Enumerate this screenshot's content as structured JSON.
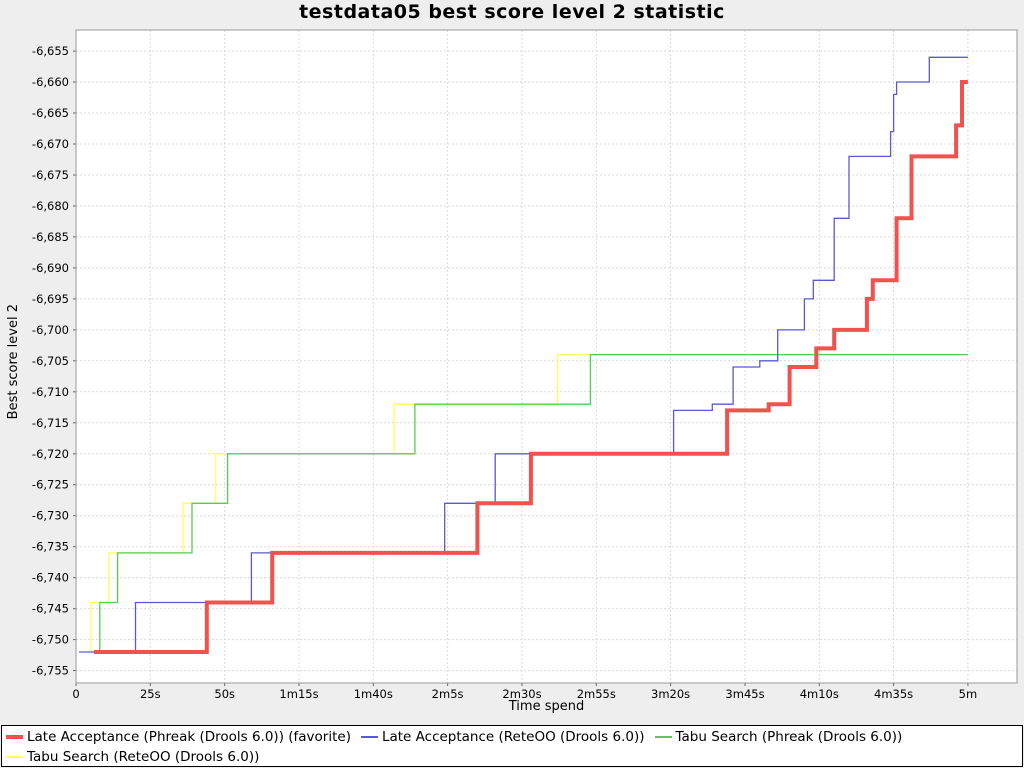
{
  "title": "testdata05 best score level 2 statistic",
  "x_axis": {
    "label": "Time spend",
    "ticks": [
      {
        "t": 0,
        "label": "0"
      },
      {
        "t": 25,
        "label": "25s"
      },
      {
        "t": 50,
        "label": "50s"
      },
      {
        "t": 75,
        "label": "1m15s"
      },
      {
        "t": 100,
        "label": "1m40s"
      },
      {
        "t": 125,
        "label": "2m5s"
      },
      {
        "t": 150,
        "label": "2m30s"
      },
      {
        "t": 175,
        "label": "2m55s"
      },
      {
        "t": 200,
        "label": "3m20s"
      },
      {
        "t": 225,
        "label": "3m45s"
      },
      {
        "t": 250,
        "label": "4m10s"
      },
      {
        "t": 275,
        "label": "4m35s"
      },
      {
        "t": 300,
        "label": "5m"
      }
    ]
  },
  "y_axis": {
    "label": "Best score level 2",
    "ticks": [
      {
        "v": -6655,
        "label": "-6,655"
      },
      {
        "v": -6660,
        "label": "-6,660"
      },
      {
        "v": -6665,
        "label": "-6,665"
      },
      {
        "v": -6670,
        "label": "-6,670"
      },
      {
        "v": -6675,
        "label": "-6,675"
      },
      {
        "v": -6680,
        "label": "-6,680"
      },
      {
        "v": -6685,
        "label": "-6,685"
      },
      {
        "v": -6690,
        "label": "-6,690"
      },
      {
        "v": -6695,
        "label": "-6,695"
      },
      {
        "v": -6700,
        "label": "-6,700"
      },
      {
        "v": -6705,
        "label": "-6,705"
      },
      {
        "v": -6710,
        "label": "-6,710"
      },
      {
        "v": -6715,
        "label": "-6,715"
      },
      {
        "v": -6720,
        "label": "-6,720"
      },
      {
        "v": -6725,
        "label": "-6,725"
      },
      {
        "v": -6730,
        "label": "-6,730"
      },
      {
        "v": -6735,
        "label": "-6,735"
      },
      {
        "v": -6740,
        "label": "-6,740"
      },
      {
        "v": -6745,
        "label": "-6,745"
      },
      {
        "v": -6750,
        "label": "-6,750"
      },
      {
        "v": -6755,
        "label": "-6,755"
      }
    ]
  },
  "chart_data": {
    "type": "line",
    "step": "after",
    "title": "testdata05 best score level 2 statistic",
    "xlabel": "Time spend",
    "ylabel": "Best score level 2",
    "x_unit": "seconds",
    "xlim": [
      0,
      316.5
    ],
    "ylim": [
      -6757,
      -6651.6
    ],
    "grid": "dashed",
    "legend_position": "bottom",
    "series": [
      {
        "id": "late-acceptance-phreak",
        "name": "Late Acceptance (Phreak (Drools 6.0)) (favorite)",
        "color": "#f0524e",
        "width": 4,
        "points": [
          [
            6,
            -6752
          ],
          [
            44,
            -6744
          ],
          [
            66,
            -6736
          ],
          [
            135,
            -6728
          ],
          [
            153,
            -6720
          ],
          [
            219,
            -6713
          ],
          [
            233,
            -6712
          ],
          [
            240,
            -6706
          ],
          [
            249,
            -6703
          ],
          [
            255,
            -6700
          ],
          [
            266,
            -6695
          ],
          [
            268,
            -6692
          ],
          [
            276,
            -6682
          ],
          [
            281,
            -6672
          ],
          [
            296,
            -6667
          ],
          [
            298,
            -6660
          ],
          [
            300,
            -6660
          ]
        ]
      },
      {
        "id": "late-acceptance-reteoo",
        "name": "Late Acceptance (ReteOO (Drools 6.0))",
        "color": "#5a5ad0",
        "width": 1.3,
        "points": [
          [
            1,
            -6752
          ],
          [
            20,
            -6744
          ],
          [
            59,
            -6736
          ],
          [
            124,
            -6728
          ],
          [
            141,
            -6720
          ],
          [
            201,
            -6713
          ],
          [
            214,
            -6712
          ],
          [
            221,
            -6706
          ],
          [
            230,
            -6705
          ],
          [
            236,
            -6700
          ],
          [
            245,
            -6695
          ],
          [
            248,
            -6692
          ],
          [
            255,
            -6682
          ],
          [
            260,
            -6672
          ],
          [
            274,
            -6668
          ],
          [
            275,
            -6662
          ],
          [
            276,
            -6660
          ],
          [
            287,
            -6656
          ],
          [
            300,
            -6656
          ]
        ]
      },
      {
        "id": "tabu-search-phreak",
        "name": "Tabu Search (Phreak (Drools 6.0))",
        "color": "#55cc55",
        "width": 1.3,
        "points": [
          [
            7,
            -6752
          ],
          [
            8,
            -6744
          ],
          [
            14,
            -6736
          ],
          [
            39,
            -6728
          ],
          [
            51,
            -6720
          ],
          [
            114,
            -6712
          ],
          [
            173,
            -6704
          ],
          [
            300,
            -6704
          ]
        ]
      },
      {
        "id": "tabu-search-reteoo",
        "name": "Tabu Search (ReteOO (Drools 6.0))",
        "color": "#ffff55",
        "width": 1.3,
        "points": [
          [
            4,
            -6752
          ],
          [
            5,
            -6744
          ],
          [
            11,
            -6736
          ],
          [
            36,
            -6728
          ],
          [
            47,
            -6720
          ],
          [
            107,
            -6712
          ],
          [
            162,
            -6704
          ],
          [
            300,
            -6704
          ]
        ]
      }
    ],
    "draw_order": [
      "tabu-search-reteoo",
      "tabu-search-phreak",
      "late-acceptance-reteoo",
      "late-acceptance-phreak"
    ]
  },
  "colors": {
    "background": "#eeeeee",
    "plot_background": "#ffffff",
    "grid": "#d9d9d9",
    "plot_border": "#999999",
    "tick": "#666666",
    "legend_border": "#000000",
    "legend_background": "#ffffff"
  }
}
